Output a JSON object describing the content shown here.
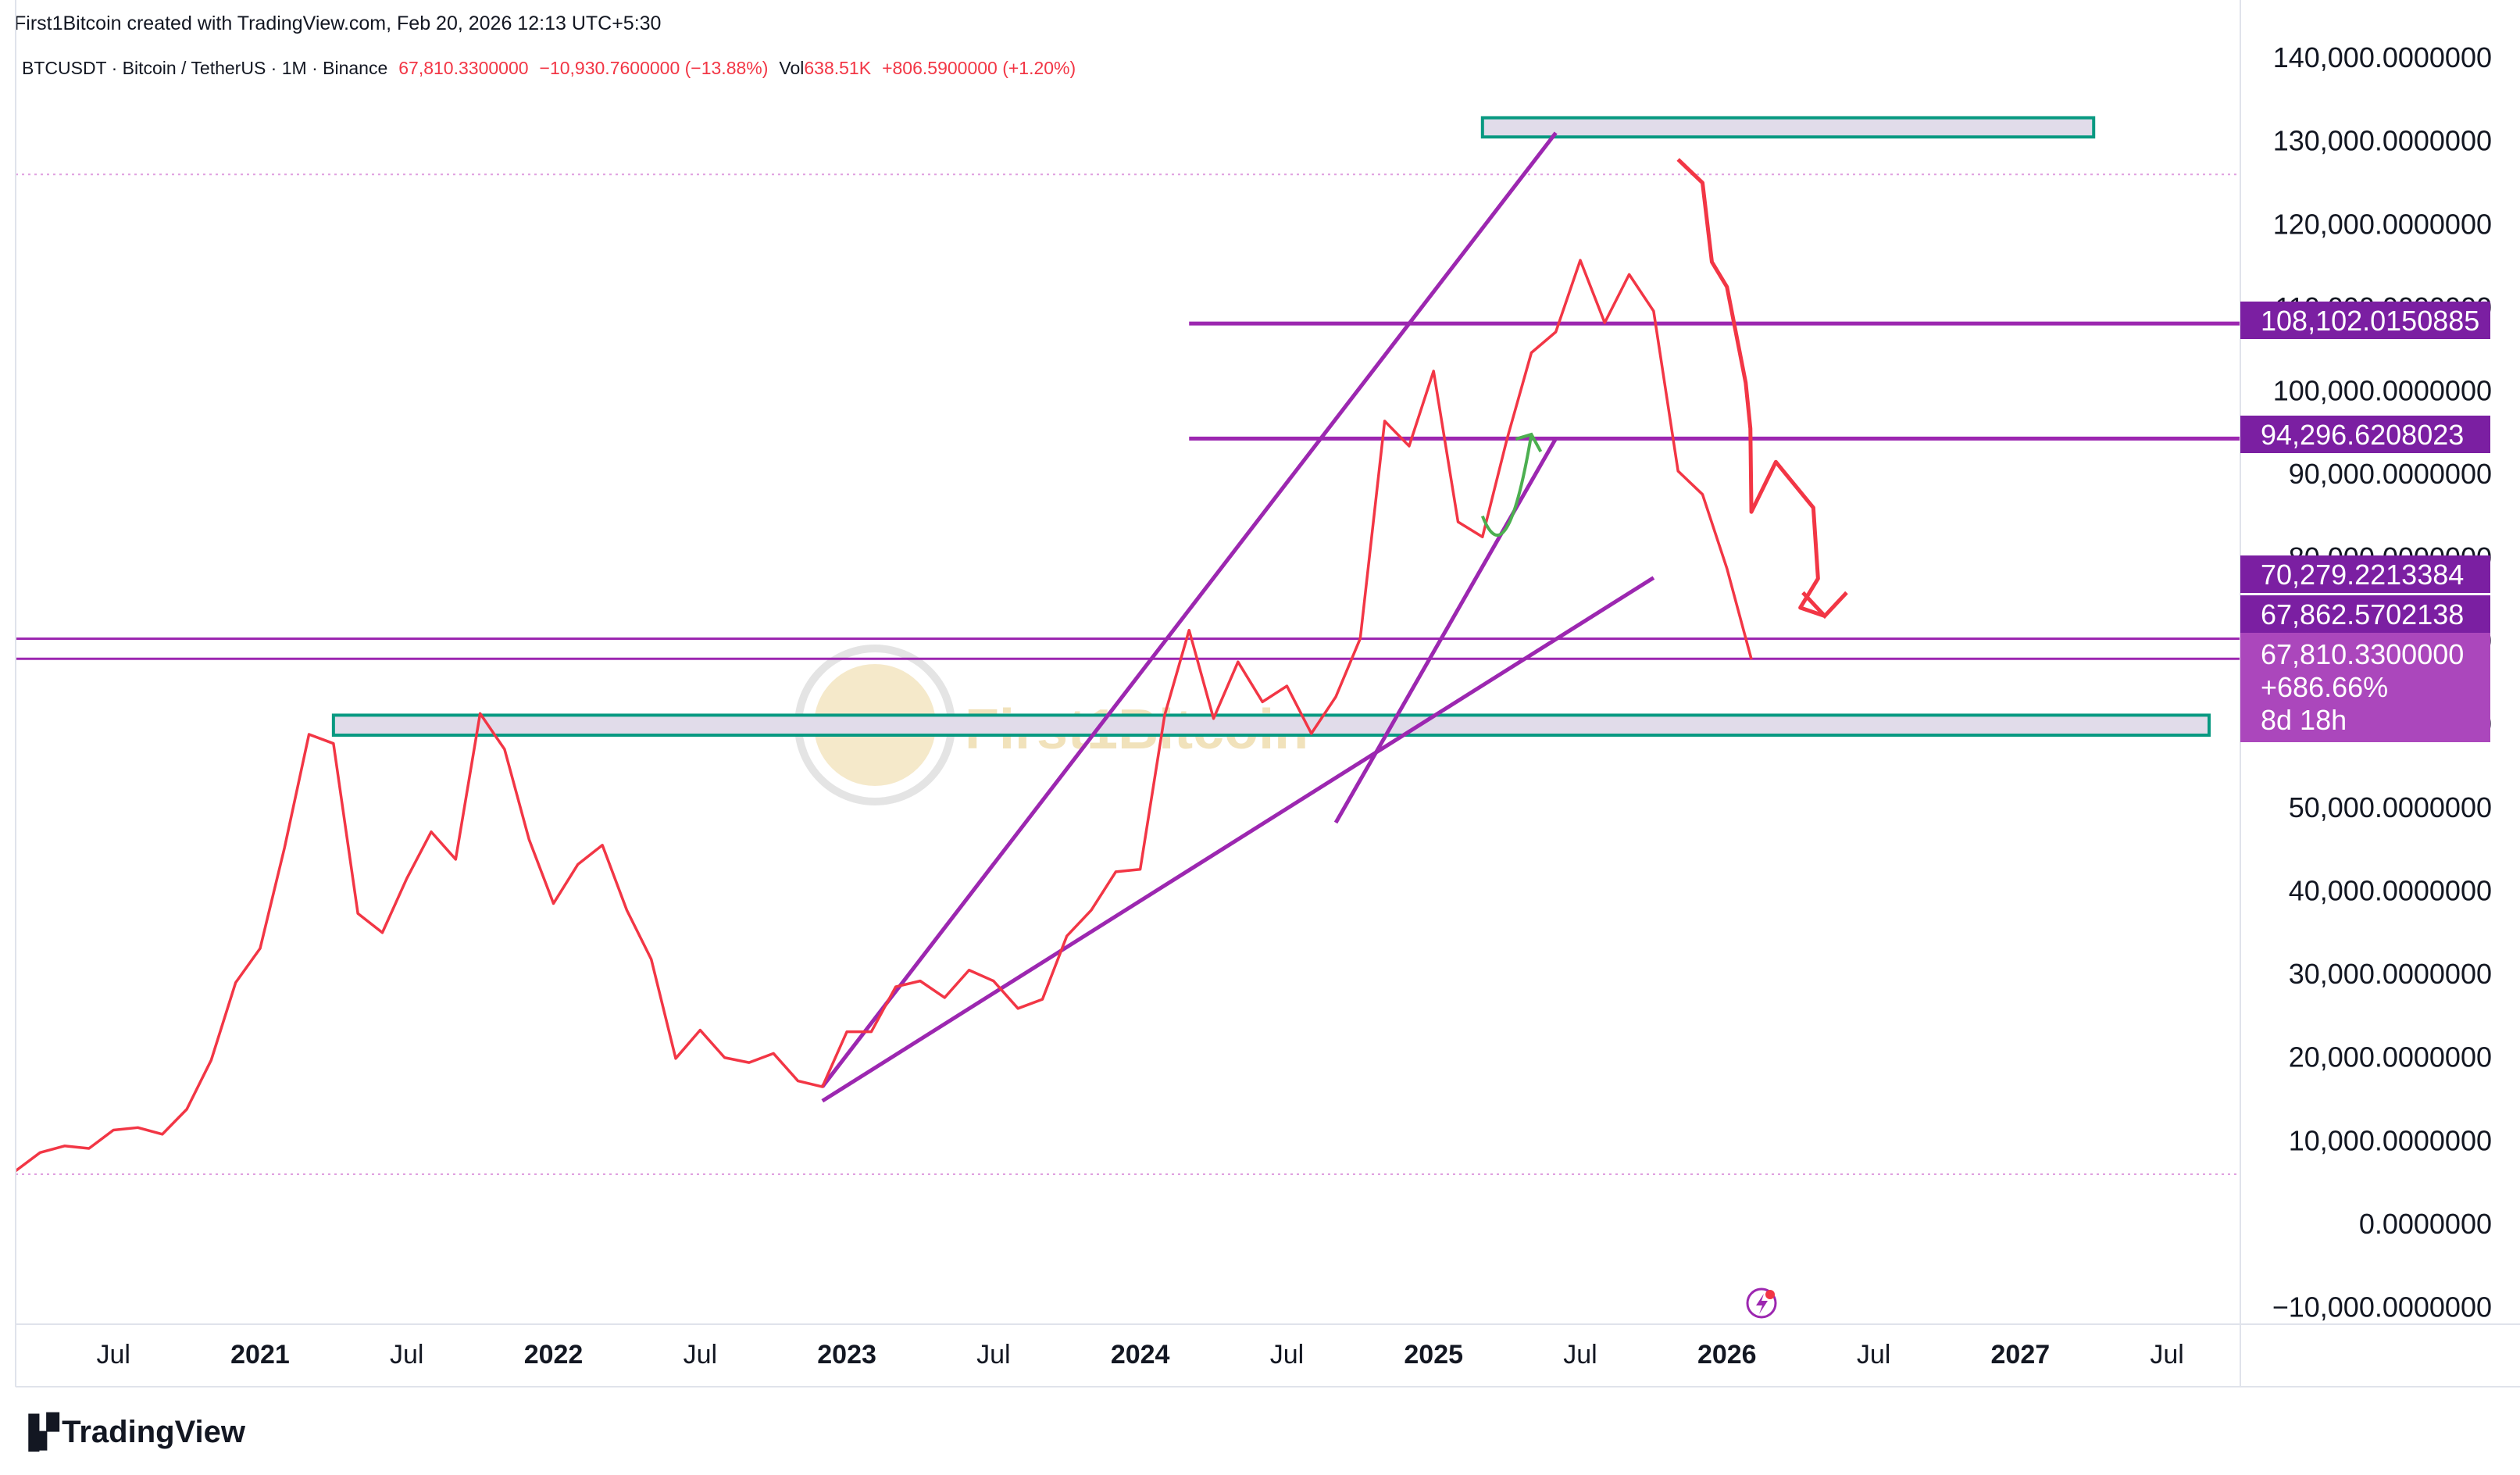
{
  "header": {
    "created": "First1Bitcoin created with TradingView.com, Feb 20, 2026 12:13 UTC+5:30",
    "symbol": "BTCUSDT · Bitcoin / TetherUS · 1M · Binance",
    "price": "67,810.3300000",
    "change": "−10,930.7600000 (−13.88%)",
    "vol_label": "Vol",
    "vol_value": "638.51K",
    "vol_change": "+806.5900000 (+1.20%)"
  },
  "branding": {
    "logo_text": "TradingView",
    "watermark": "First1Bitcoin"
  },
  "colors": {
    "price_line": "#f23645",
    "trendline": "#9c27b0",
    "level_badge": "#7b1fa2",
    "current_badge": "#ab47bc",
    "zone_border": "#089981",
    "zone_fill": "#e1dcea",
    "arrow_up": "#4caf50",
    "dotted_level": "#e0a0e0"
  },
  "chart_data": {
    "type": "line",
    "title": "",
    "xlabel": "",
    "ylabel": "",
    "interval": "1M",
    "x_axis_ticks": [
      {
        "date": "2020-07",
        "label": "Jul",
        "bold": false
      },
      {
        "date": "2021-01",
        "label": "2021",
        "bold": true
      },
      {
        "date": "2021-07",
        "label": "Jul",
        "bold": false
      },
      {
        "date": "2022-01",
        "label": "2022",
        "bold": true
      },
      {
        "date": "2022-07",
        "label": "Jul",
        "bold": false
      },
      {
        "date": "2023-01",
        "label": "2023",
        "bold": true
      },
      {
        "date": "2023-07",
        "label": "Jul",
        "bold": false
      },
      {
        "date": "2024-01",
        "label": "2024",
        "bold": true
      },
      {
        "date": "2024-07",
        "label": "Jul",
        "bold": false
      },
      {
        "date": "2025-01",
        "label": "2025",
        "bold": true
      },
      {
        "date": "2025-07",
        "label": "Jul",
        "bold": false
      },
      {
        "date": "2026-01",
        "label": "2026",
        "bold": true
      },
      {
        "date": "2026-07",
        "label": "Jul",
        "bold": false
      },
      {
        "date": "2027-01",
        "label": "2027",
        "bold": true
      },
      {
        "date": "2027-07",
        "label": "Jul",
        "bold": false
      }
    ],
    "y_axis_ticks": [
      "140,000.0000000",
      "130,000.0000000",
      "120,000.0000000",
      "110,000.0000000",
      "100,000.0000000",
      "90,000.0000000",
      "80,000.0000000",
      "70,000.0000000",
      "60,000.0000000",
      "50,000.0000000",
      "40,000.0000000",
      "30,000.0000000",
      "20,000.0000000",
      "10,000.0000000",
      "0.0000000",
      "−10,000.0000000"
    ],
    "y_tick_values": [
      140000,
      130000,
      120000,
      110000,
      100000,
      90000,
      80000,
      70000,
      60000,
      50000,
      40000,
      30000,
      20000,
      10000,
      0,
      -10000
    ],
    "y_range": [
      -12000,
      143000
    ],
    "x_range": [
      "2020-03",
      "2027-10"
    ],
    "series": [
      {
        "data": [
          [
            "2020-03",
            6400
          ],
          [
            "2020-04",
            8600
          ],
          [
            "2020-05",
            9400
          ],
          [
            "2020-06",
            9100
          ],
          [
            "2020-07",
            11300
          ],
          [
            "2020-08",
            11600
          ],
          [
            "2020-09",
            10800
          ],
          [
            "2020-10",
            13800
          ],
          [
            "2020-11",
            19700
          ],
          [
            "2020-12",
            29000
          ],
          [
            "2021-01",
            33100
          ],
          [
            "2021-02",
            45200
          ],
          [
            "2021-03",
            58800
          ],
          [
            "2021-04",
            57700
          ],
          [
            "2021-05",
            37300
          ],
          [
            "2021-06",
            35000
          ],
          [
            "2021-07",
            41500
          ],
          [
            "2021-08",
            47100
          ],
          [
            "2021-09",
            43800
          ],
          [
            "2021-10",
            61300
          ],
          [
            "2021-11",
            57000
          ],
          [
            "2021-12",
            46200
          ],
          [
            "2022-01",
            38500
          ],
          [
            "2022-02",
            43200
          ],
          [
            "2022-03",
            45500
          ],
          [
            "2022-04",
            37700
          ],
          [
            "2022-05",
            31800
          ],
          [
            "2022-06",
            19900
          ],
          [
            "2022-07",
            23300
          ],
          [
            "2022-08",
            20000
          ],
          [
            "2022-09",
            19400
          ],
          [
            "2022-10",
            20500
          ],
          [
            "2022-11",
            17200
          ],
          [
            "2022-12",
            16500
          ],
          [
            "2023-01",
            23100
          ],
          [
            "2023-02",
            23100
          ],
          [
            "2023-03",
            28500
          ],
          [
            "2023-04",
            29200
          ],
          [
            "2023-05",
            27200
          ],
          [
            "2023-06",
            30500
          ],
          [
            "2023-07",
            29200
          ],
          [
            "2023-08",
            25900
          ],
          [
            "2023-09",
            27000
          ],
          [
            "2023-10",
            34600
          ],
          [
            "2023-11",
            37700
          ],
          [
            "2023-12",
            42300
          ],
          [
            "2024-01",
            42600
          ],
          [
            "2024-02",
            61100
          ],
          [
            "2024-03",
            71300
          ],
          [
            "2024-04",
            60700
          ],
          [
            "2024-05",
            67500
          ],
          [
            "2024-06",
            62700
          ],
          [
            "2024-07",
            64600
          ],
          [
            "2024-08",
            58900
          ],
          [
            "2024-09",
            63300
          ],
          [
            "2024-10",
            70300
          ],
          [
            "2024-11",
            96400
          ],
          [
            "2024-12",
            93400
          ],
          [
            "2025-01",
            102400
          ],
          [
            "2025-02",
            84300
          ],
          [
            "2025-03",
            82500
          ],
          [
            "2025-04",
            94200
          ],
          [
            "2025-05",
            104600
          ],
          [
            "2025-06",
            107100
          ],
          [
            "2025-07",
            115700
          ],
          [
            "2025-08",
            108200
          ],
          [
            "2025-09",
            114000
          ],
          [
            "2025-10",
            109600
          ],
          [
            "2025-11",
            90400
          ],
          [
            "2025-12",
            87600
          ],
          [
            "2026-01",
            78700
          ],
          [
            "2026-02",
            67810
          ]
        ]
      }
    ],
    "price_levels": [
      {
        "value": 108102.0150885,
        "label": "108,102.0150885",
        "start": "2024-03"
      },
      {
        "value": 94296.6208023,
        "label": "94,296.6208023",
        "start": "2024-03"
      },
      {
        "value": 70279.2213384,
        "label": "70,279.2213384",
        "start": "2020-03"
      },
      {
        "value": 67862.5702138,
        "label": "67,862.5702138",
        "start": "2020-03"
      }
    ],
    "current_price": {
      "value": 67810.33,
      "label": "67,810.3300000",
      "change_pct": "+686.66%",
      "countdown": "8d 18h"
    },
    "dotted_levels": [
      126000,
      6000
    ],
    "zones": [
      {
        "x0": "2025-03",
        "x1": "2027-04",
        "y0": 130500,
        "y1": 132800
      },
      {
        "x0": "2021-04",
        "x1": "2028-01",
        "y0": 58700,
        "y1": 61100
      }
    ],
    "trendlines": [
      {
        "p1": [
          "2022-12",
          16500
        ],
        "p2": [
          "2025-06",
          131000
        ]
      },
      {
        "p1": [
          "2022-12",
          14800
        ],
        "p2": [
          "2025-10",
          77600
        ]
      },
      {
        "p1": [
          "2024-09",
          48200
        ],
        "p2": [
          "2025-06",
          94300
        ]
      }
    ],
    "projection": [
      [
        "2025-11",
        127800
      ],
      [
        "2025-12",
        125000
      ],
      [
        "2025-12",
        115500
      ],
      [
        "2026-01",
        112500
      ],
      [
        "2026-01",
        101000
      ],
      [
        "2026-01",
        95500
      ],
      [
        "2026-02",
        85500
      ],
      [
        "2026-03",
        91500
      ],
      [
        "2026-03",
        86000
      ],
      [
        "2026-03",
        77500
      ],
      [
        "2026-04",
        74000
      ],
      [
        "2026-05",
        73000
      ]
    ],
    "arrow_up": [
      [
        "2025-03",
        85000
      ],
      [
        "2025-04",
        84000
      ],
      [
        "2025-05",
        94800
      ]
    ],
    "grid": false
  }
}
